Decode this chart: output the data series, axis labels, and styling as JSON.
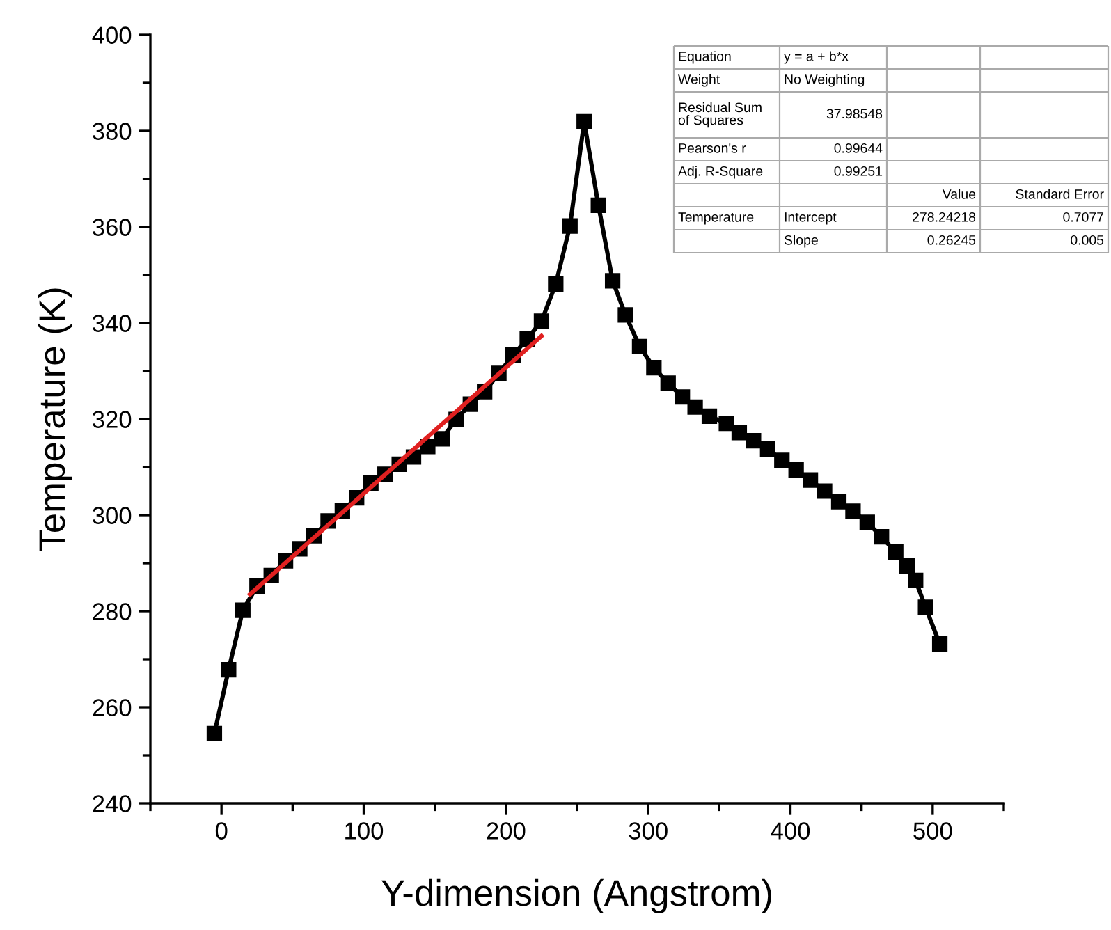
{
  "chart_data": {
    "type": "line",
    "xlabel": "Y-dimension (Angstrom)",
    "ylabel": "Temperature (K)",
    "xlim": [
      -50,
      550
    ],
    "xticks": [
      0,
      100,
      200,
      300,
      400,
      500
    ],
    "ylim": [
      240,
      400
    ],
    "yticks": [
      240,
      260,
      280,
      300,
      320,
      340,
      360,
      380,
      400
    ],
    "grid": false,
    "legend": false,
    "series": [
      {
        "color": "#000000",
        "marker": "square",
        "line_style": "solid",
        "x": [
          -5,
          5,
          15,
          25,
          35,
          45,
          55,
          65,
          75,
          85,
          95,
          105,
          115,
          125,
          135,
          145,
          155,
          165,
          175,
          185,
          195,
          205,
          215,
          225,
          235,
          245,
          255,
          265,
          275,
          284,
          294,
          304,
          314,
          324,
          333,
          343,
          355,
          364,
          374,
          384,
          394,
          404,
          414,
          424,
          434,
          444,
          454,
          464,
          474,
          482,
          488,
          495,
          505
        ],
        "values": [
          254.5,
          267.8,
          280.2,
          285.2,
          287.4,
          290.5,
          293.0,
          295.7,
          298.8,
          300.9,
          303.6,
          306.7,
          308.5,
          310.6,
          312.1,
          314.3,
          315.9,
          319.9,
          323.1,
          325.7,
          329.5,
          333.3,
          336.7,
          340.4,
          348.1,
          360.2,
          381.9,
          364.5,
          348.8,
          341.7,
          335.1,
          330.7,
          327.5,
          324.6,
          322.5,
          320.6,
          319.1,
          317.2,
          315.5,
          313.8,
          311.4,
          309.4,
          307.3,
          305.0,
          302.8,
          300.8,
          298.5,
          295.5,
          292.3,
          289.4,
          286.4,
          280.8,
          273.2
        ]
      },
      {
        "color": "#e02020",
        "marker": "none",
        "line_style": "solid",
        "x": [
          20,
          225
        ],
        "values": [
          283.5,
          337.3
        ]
      }
    ],
    "annotations": [
      "Equation\ty = a + b*x\t\t",
      "Weight\tNo Weighting\t\t",
      "Residual Sum\nof Squares\t37.98548\t\t",
      "Pearson's r\t0.99644\t\t",
      "Adj. R-Square\t0.99251\t\t",
      "\t\tValue\tStandard Error",
      "Temperature\tIntercept\t278.24218\t0.7077",
      "\tSlope\t0.26245\t0.005"
    ]
  }
}
